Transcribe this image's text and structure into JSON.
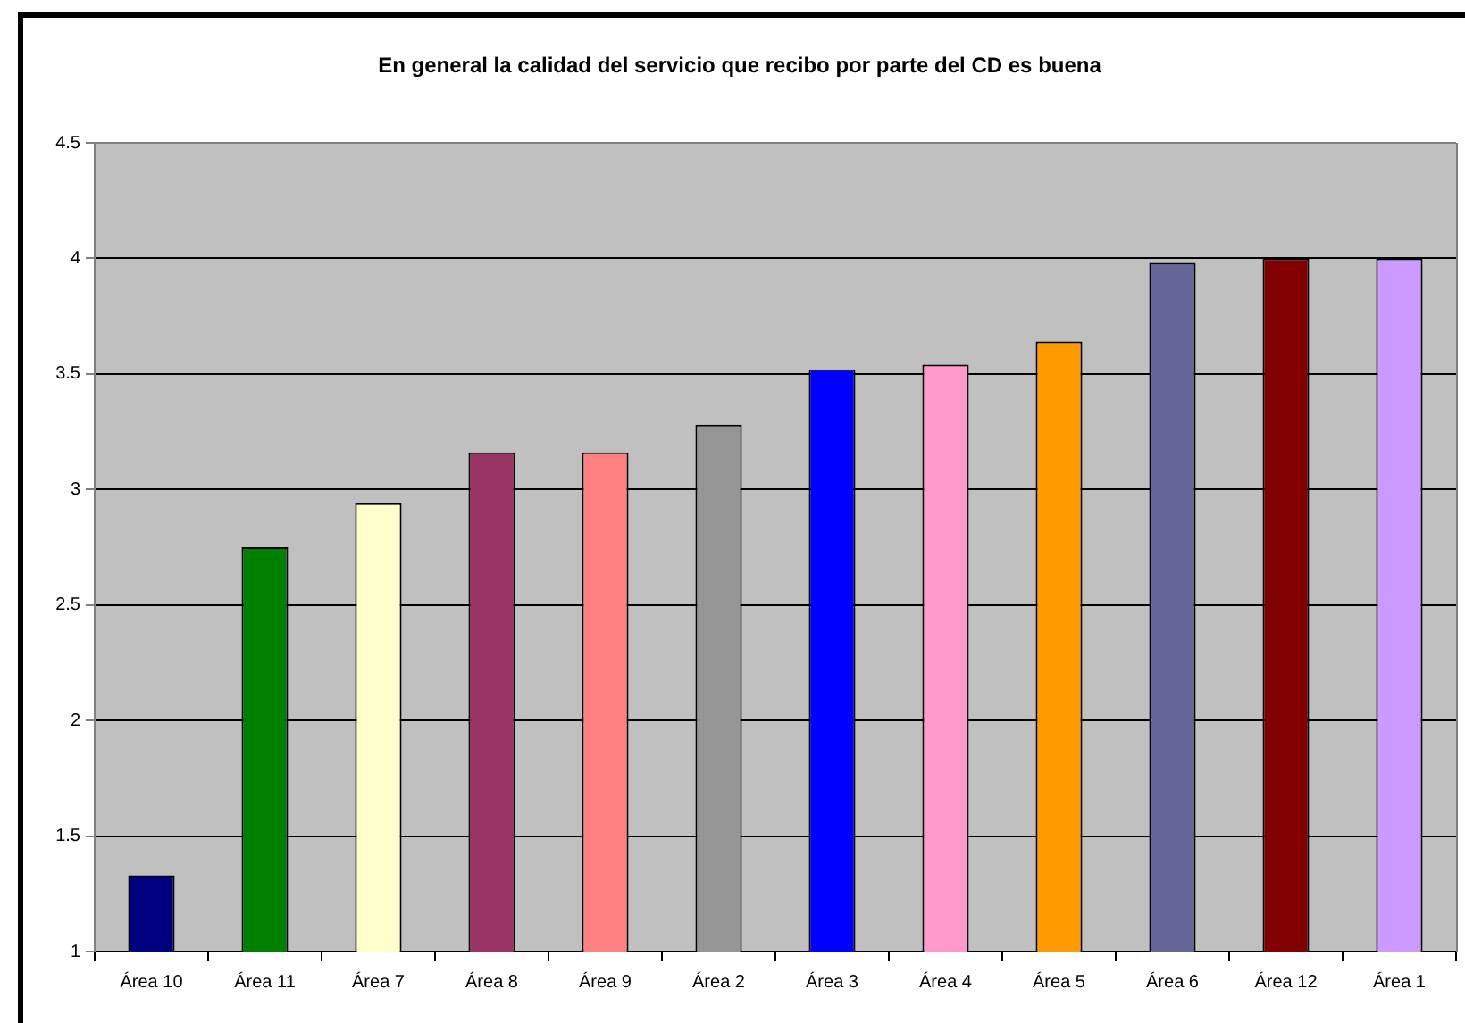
{
  "chart_data": {
    "type": "bar",
    "title": "En general la calidad del servicio que recibo por parte del CD es buena",
    "categories": [
      "Área 10",
      "Área 11",
      "Área 7",
      "Área 8",
      "Área 9",
      "Área 2",
      "Área 3",
      "Área 4",
      "Área 5",
      "Área 6",
      "Área 12",
      "Área 1"
    ],
    "values": [
      1.33,
      2.75,
      2.94,
      3.16,
      3.16,
      3.28,
      3.52,
      3.54,
      3.64,
      3.98,
      4,
      4
    ],
    "colors": [
      "#000080",
      "#008000",
      "#ffffcc",
      "#993366",
      "#ff8080",
      "#969696",
      "#0000ff",
      "#ff99cc",
      "#ff9900",
      "#666699",
      "#800000",
      "#cc99ff"
    ],
    "ylim": [
      1,
      4.5
    ],
    "yticks": [
      1,
      1.5,
      2,
      2.5,
      3,
      3.5,
      4,
      4.5
    ],
    "grid": "y"
  }
}
